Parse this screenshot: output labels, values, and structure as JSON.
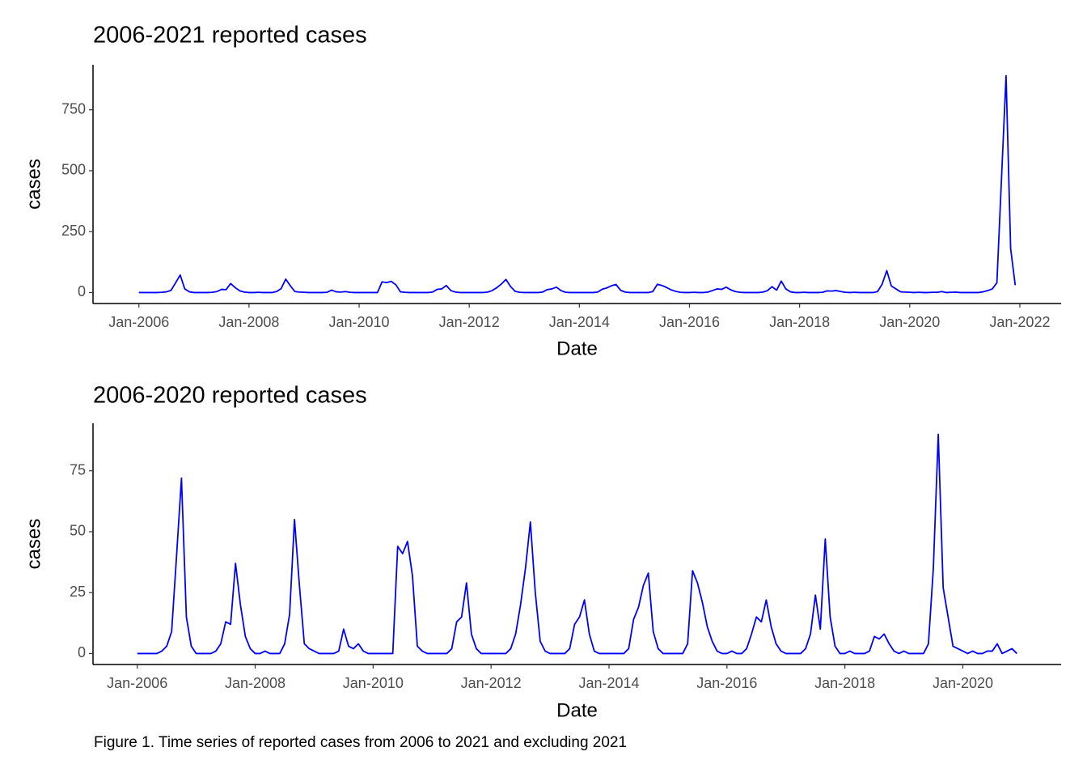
{
  "chart_data": [
    {
      "type": "line",
      "title": "2006-2021 reported cases",
      "x_label": "Date",
      "y_label": "cases",
      "x": [
        "2006-01",
        "2006-02",
        "2006-03",
        "2006-04",
        "2006-05",
        "2006-06",
        "2006-07",
        "2006-08",
        "2006-09",
        "2006-10",
        "2006-11",
        "2006-12",
        "2007-01",
        "2007-02",
        "2007-03",
        "2007-04",
        "2007-05",
        "2007-06",
        "2007-07",
        "2007-08",
        "2007-09",
        "2007-10",
        "2007-11",
        "2007-12",
        "2008-01",
        "2008-02",
        "2008-03",
        "2008-04",
        "2008-05",
        "2008-06",
        "2008-07",
        "2008-08",
        "2008-09",
        "2008-10",
        "2008-11",
        "2008-12",
        "2009-01",
        "2009-02",
        "2009-03",
        "2009-04",
        "2009-05",
        "2009-06",
        "2009-07",
        "2009-08",
        "2009-09",
        "2009-10",
        "2009-11",
        "2009-12",
        "2010-01",
        "2010-02",
        "2010-03",
        "2010-04",
        "2010-05",
        "2010-06",
        "2010-07",
        "2010-08",
        "2010-09",
        "2010-10",
        "2010-11",
        "2010-12",
        "2011-01",
        "2011-02",
        "2011-03",
        "2011-04",
        "2011-05",
        "2011-06",
        "2011-07",
        "2011-08",
        "2011-09",
        "2011-10",
        "2011-11",
        "2011-12",
        "2012-01",
        "2012-02",
        "2012-03",
        "2012-04",
        "2012-05",
        "2012-06",
        "2012-07",
        "2012-08",
        "2012-09",
        "2012-10",
        "2012-11",
        "2012-12",
        "2013-01",
        "2013-02",
        "2013-03",
        "2013-04",
        "2013-05",
        "2013-06",
        "2013-07",
        "2013-08",
        "2013-09",
        "2013-10",
        "2013-11",
        "2013-12",
        "2014-01",
        "2014-02",
        "2014-03",
        "2014-04",
        "2014-05",
        "2014-06",
        "2014-07",
        "2014-08",
        "2014-09",
        "2014-10",
        "2014-11",
        "2014-12",
        "2015-01",
        "2015-02",
        "2015-03",
        "2015-04",
        "2015-05",
        "2015-06",
        "2015-07",
        "2015-08",
        "2015-09",
        "2015-10",
        "2015-11",
        "2015-12",
        "2016-01",
        "2016-02",
        "2016-03",
        "2016-04",
        "2016-05",
        "2016-06",
        "2016-07",
        "2016-08",
        "2016-09",
        "2016-10",
        "2016-11",
        "2016-12",
        "2017-01",
        "2017-02",
        "2017-03",
        "2017-04",
        "2017-05",
        "2017-06",
        "2017-07",
        "2017-08",
        "2017-09",
        "2017-10",
        "2017-11",
        "2017-12",
        "2018-01",
        "2018-02",
        "2018-03",
        "2018-04",
        "2018-05",
        "2018-06",
        "2018-07",
        "2018-08",
        "2018-09",
        "2018-10",
        "2018-11",
        "2018-12",
        "2019-01",
        "2019-02",
        "2019-03",
        "2019-04",
        "2019-05",
        "2019-06",
        "2019-07",
        "2019-08",
        "2019-09",
        "2019-10",
        "2019-11",
        "2019-12",
        "2020-01",
        "2020-02",
        "2020-03",
        "2020-04",
        "2020-05",
        "2020-06",
        "2020-07",
        "2020-08",
        "2020-09",
        "2020-10",
        "2020-11",
        "2020-12",
        "2021-01",
        "2021-02",
        "2021-03",
        "2021-04",
        "2021-05",
        "2021-06",
        "2021-07",
        "2021-08",
        "2021-09",
        "2021-10",
        "2021-11",
        "2021-12"
      ],
      "values": [
        0,
        0,
        0,
        0,
        0,
        1,
        3,
        9,
        40,
        72,
        15,
        3,
        0,
        0,
        0,
        0,
        1,
        4,
        13,
        12,
        37,
        20,
        7,
        2,
        0,
        0,
        1,
        0,
        0,
        0,
        4,
        16,
        55,
        28,
        4,
        2,
        1,
        0,
        0,
        0,
        0,
        1,
        10,
        3,
        2,
        4,
        1,
        0,
        0,
        0,
        0,
        0,
        0,
        44,
        41,
        46,
        32,
        3,
        1,
        0,
        0,
        0,
        0,
        0,
        2,
        13,
        15,
        29,
        8,
        2,
        0,
        0,
        0,
        0,
        0,
        0,
        2,
        8,
        20,
        35,
        54,
        25,
        5,
        1,
        0,
        0,
        0,
        0,
        2,
        12,
        15,
        22,
        8,
        1,
        0,
        0,
        0,
        0,
        0,
        0,
        2,
        14,
        19,
        28,
        33,
        9,
        2,
        0,
        0,
        0,
        0,
        0,
        4,
        34,
        29,
        21,
        11,
        5,
        1,
        0,
        0,
        1,
        0,
        0,
        2,
        8,
        15,
        13,
        22,
        11,
        4,
        1,
        0,
        0,
        0,
        0,
        2,
        8,
        24,
        10,
        47,
        15,
        3,
        0,
        0,
        1,
        0,
        0,
        0,
        1,
        7,
        6,
        8,
        4,
        1,
        0,
        1,
        0,
        0,
        0,
        0,
        4,
        35,
        90,
        27,
        15,
        3,
        2,
        1,
        0,
        1,
        0,
        0,
        1,
        1,
        4,
        0,
        1,
        2,
        0,
        0,
        0,
        0,
        0,
        3,
        8,
        15,
        40,
        465,
        890,
        180,
        30
      ],
      "color": "#0000ff",
      "xlim": [
        "2005-03",
        "2022-10"
      ],
      "xticks": [
        {
          "value": "2006-01",
          "label": "Jan-2006"
        },
        {
          "value": "2008-01",
          "label": "Jan-2008"
        },
        {
          "value": "2010-01",
          "label": "Jan-2010"
        },
        {
          "value": "2012-01",
          "label": "Jan-2012"
        },
        {
          "value": "2014-01",
          "label": "Jan-2014"
        },
        {
          "value": "2016-01",
          "label": "Jan-2016"
        },
        {
          "value": "2018-01",
          "label": "Jan-2018"
        },
        {
          "value": "2020-01",
          "label": "Jan-2020"
        },
        {
          "value": "2022-01",
          "label": "Jan-2022"
        }
      ],
      "ylim": [
        -45,
        935
      ],
      "yticks": [
        0,
        250,
        500,
        750
      ]
    },
    {
      "type": "line",
      "title": "2006-2020 reported cases",
      "x_label": "Date",
      "y_label": "cases",
      "x": [
        "2006-01",
        "2006-02",
        "2006-03",
        "2006-04",
        "2006-05",
        "2006-06",
        "2006-07",
        "2006-08",
        "2006-09",
        "2006-10",
        "2006-11",
        "2006-12",
        "2007-01",
        "2007-02",
        "2007-03",
        "2007-04",
        "2007-05",
        "2007-06",
        "2007-07",
        "2007-08",
        "2007-09",
        "2007-10",
        "2007-11",
        "2007-12",
        "2008-01",
        "2008-02",
        "2008-03",
        "2008-04",
        "2008-05",
        "2008-06",
        "2008-07",
        "2008-08",
        "2008-09",
        "2008-10",
        "2008-11",
        "2008-12",
        "2009-01",
        "2009-02",
        "2009-03",
        "2009-04",
        "2009-05",
        "2009-06",
        "2009-07",
        "2009-08",
        "2009-09",
        "2009-10",
        "2009-11",
        "2009-12",
        "2010-01",
        "2010-02",
        "2010-03",
        "2010-04",
        "2010-05",
        "2010-06",
        "2010-07",
        "2010-08",
        "2010-09",
        "2010-10",
        "2010-11",
        "2010-12",
        "2011-01",
        "2011-02",
        "2011-03",
        "2011-04",
        "2011-05",
        "2011-06",
        "2011-07",
        "2011-08",
        "2011-09",
        "2011-10",
        "2011-11",
        "2011-12",
        "2012-01",
        "2012-02",
        "2012-03",
        "2012-04",
        "2012-05",
        "2012-06",
        "2012-07",
        "2012-08",
        "2012-09",
        "2012-10",
        "2012-11",
        "2012-12",
        "2013-01",
        "2013-02",
        "2013-03",
        "2013-04",
        "2013-05",
        "2013-06",
        "2013-07",
        "2013-08",
        "2013-09",
        "2013-10",
        "2013-11",
        "2013-12",
        "2014-01",
        "2014-02",
        "2014-03",
        "2014-04",
        "2014-05",
        "2014-06",
        "2014-07",
        "2014-08",
        "2014-09",
        "2014-10",
        "2014-11",
        "2014-12",
        "2015-01",
        "2015-02",
        "2015-03",
        "2015-04",
        "2015-05",
        "2015-06",
        "2015-07",
        "2015-08",
        "2015-09",
        "2015-10",
        "2015-11",
        "2015-12",
        "2016-01",
        "2016-02",
        "2016-03",
        "2016-04",
        "2016-05",
        "2016-06",
        "2016-07",
        "2016-08",
        "2016-09",
        "2016-10",
        "2016-11",
        "2016-12",
        "2017-01",
        "2017-02",
        "2017-03",
        "2017-04",
        "2017-05",
        "2017-06",
        "2017-07",
        "2017-08",
        "2017-09",
        "2017-10",
        "2017-11",
        "2017-12",
        "2018-01",
        "2018-02",
        "2018-03",
        "2018-04",
        "2018-05",
        "2018-06",
        "2018-07",
        "2018-08",
        "2018-09",
        "2018-10",
        "2018-11",
        "2018-12",
        "2019-01",
        "2019-02",
        "2019-03",
        "2019-04",
        "2019-05",
        "2019-06",
        "2019-07",
        "2019-08",
        "2019-09",
        "2019-10",
        "2019-11",
        "2019-12",
        "2020-01",
        "2020-02",
        "2020-03",
        "2020-04",
        "2020-05",
        "2020-06",
        "2020-07",
        "2020-08",
        "2020-09",
        "2020-10",
        "2020-11",
        "2020-12"
      ],
      "values": [
        0,
        0,
        0,
        0,
        0,
        1,
        3,
        9,
        40,
        72,
        15,
        3,
        0,
        0,
        0,
        0,
        1,
        4,
        13,
        12,
        37,
        20,
        7,
        2,
        0,
        0,
        1,
        0,
        0,
        0,
        4,
        16,
        55,
        28,
        4,
        2,
        1,
        0,
        0,
        0,
        0,
        1,
        10,
        3,
        2,
        4,
        1,
        0,
        0,
        0,
        0,
        0,
        0,
        44,
        41,
        46,
        32,
        3,
        1,
        0,
        0,
        0,
        0,
        0,
        2,
        13,
        15,
        29,
        8,
        2,
        0,
        0,
        0,
        0,
        0,
        0,
        2,
        8,
        20,
        35,
        54,
        25,
        5,
        1,
        0,
        0,
        0,
        0,
        2,
        12,
        15,
        22,
        8,
        1,
        0,
        0,
        0,
        0,
        0,
        0,
        2,
        14,
        19,
        28,
        33,
        9,
        2,
        0,
        0,
        0,
        0,
        0,
        4,
        34,
        29,
        21,
        11,
        5,
        1,
        0,
        0,
        1,
        0,
        0,
        2,
        8,
        15,
        13,
        22,
        11,
        4,
        1,
        0,
        0,
        0,
        0,
        2,
        8,
        24,
        10,
        47,
        15,
        3,
        0,
        0,
        1,
        0,
        0,
        0,
        1,
        7,
        6,
        8,
        4,
        1,
        0,
        1,
        0,
        0,
        0,
        0,
        4,
        35,
        90,
        27,
        15,
        3,
        2,
        1,
        0,
        1,
        0,
        0,
        1,
        1,
        4,
        0,
        1,
        2,
        0
      ],
      "color": "#0000ff",
      "xlim": [
        "2005-04",
        "2021-09"
      ],
      "xticks": [
        {
          "value": "2006-01",
          "label": "Jan-2006"
        },
        {
          "value": "2008-01",
          "label": "Jan-2008"
        },
        {
          "value": "2010-01",
          "label": "Jan-2010"
        },
        {
          "value": "2012-01",
          "label": "Jan-2012"
        },
        {
          "value": "2014-01",
          "label": "Jan-2014"
        },
        {
          "value": "2016-01",
          "label": "Jan-2016"
        },
        {
          "value": "2018-01",
          "label": "Jan-2018"
        },
        {
          "value": "2020-01",
          "label": "Jan-2020"
        }
      ],
      "ylim": [
        -4.5,
        94.5
      ],
      "yticks": [
        0,
        25,
        50,
        75
      ]
    }
  ],
  "caption": "Figure 1. Time series of reported cases from 2006 to 2021 and excluding 2021"
}
